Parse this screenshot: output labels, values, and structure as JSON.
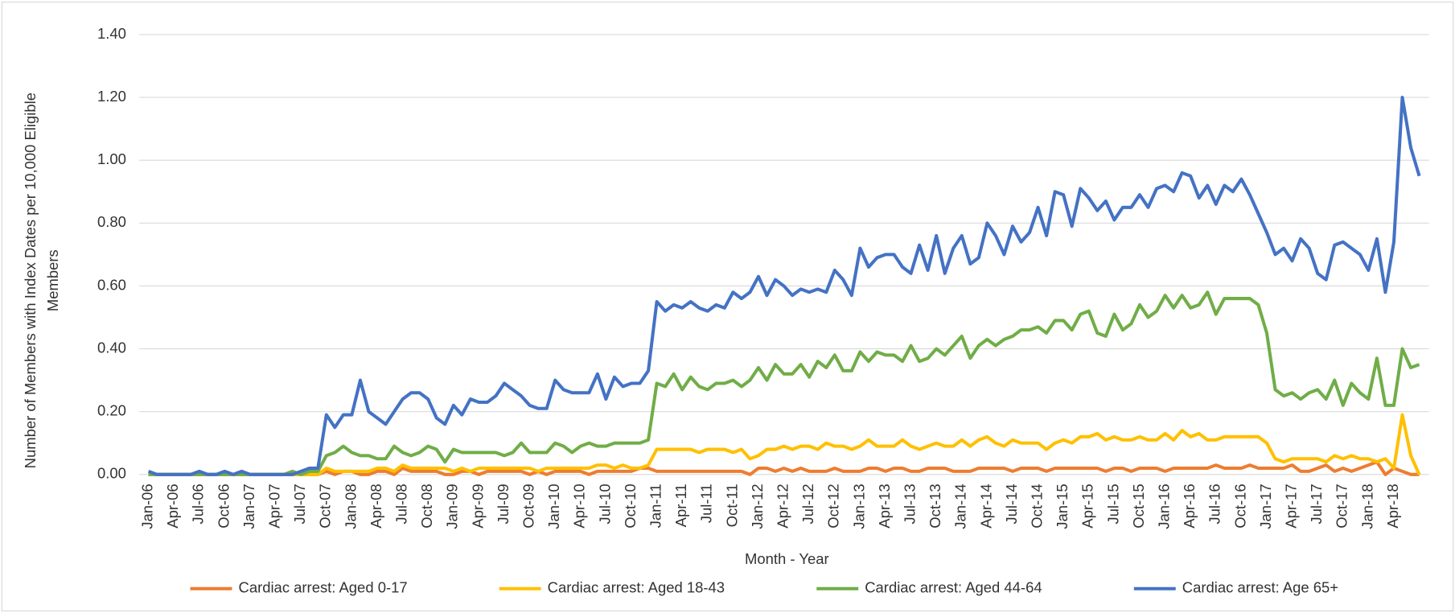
{
  "chart_data": {
    "type": "line",
    "x_label": "Month - Year",
    "y_label_lines": [
      "Number of Members with Index Dates per 10,000 Eligible",
      "Members"
    ],
    "categories": [
      "Jan-06",
      null,
      null,
      "Apr-06",
      null,
      null,
      "Jul-06",
      null,
      null,
      "Oct-06",
      null,
      null,
      "Jan-07",
      null,
      null,
      "Apr-07",
      null,
      null,
      "Jul-07",
      null,
      null,
      "Oct-07",
      null,
      null,
      "Jan-08",
      null,
      null,
      "Apr-08",
      null,
      null,
      "Jul-08",
      null,
      null,
      "Oct-08",
      null,
      null,
      "Jan-09",
      null,
      null,
      "Apr-09",
      null,
      null,
      "Jul-09",
      null,
      null,
      "Oct-09",
      null,
      null,
      "Jan-10",
      null,
      null,
      "Apr-10",
      null,
      null,
      "Jul-10",
      null,
      null,
      "Oct-10",
      null,
      null,
      "Jan-11",
      null,
      null,
      "Apr-11",
      null,
      null,
      "Jul-11",
      null,
      null,
      "Oct-11",
      null,
      null,
      "Jan-12",
      null,
      null,
      "Apr-12",
      null,
      null,
      "Jul-12",
      null,
      null,
      "Oct-12",
      null,
      null,
      "Jan-13",
      null,
      null,
      "Apr-13",
      null,
      null,
      "Jul-13",
      null,
      null,
      "Oct-13",
      null,
      null,
      "Jan-14",
      null,
      null,
      "Apr-14",
      null,
      null,
      "Jul-14",
      null,
      null,
      "Oct-14",
      null,
      null,
      "Jan-15",
      null,
      null,
      "Apr-15",
      null,
      null,
      "Jul-15",
      null,
      null,
      "Oct-15",
      null,
      null,
      "Jan-16",
      null,
      null,
      "Apr-16",
      null,
      null,
      "Jul-16",
      null,
      null,
      "Oct-16",
      null,
      null,
      "Jan-17",
      null,
      null,
      "Apr-17",
      null,
      null,
      "Jul-17",
      null,
      null,
      "Oct-17",
      null,
      null,
      "Jan-18",
      null,
      null,
      "Apr-18",
      null,
      null,
      null
    ],
    "series": [
      {
        "name": "Cardiac arrest: Aged 0-17",
        "color": "#ED7D31",
        "values": [
          0,
          0,
          0,
          0,
          0,
          0,
          0,
          0,
          0,
          0,
          0,
          0,
          0,
          0,
          0,
          0,
          0,
          0,
          0,
          0,
          0,
          0.01,
          0,
          0.01,
          0.01,
          0,
          0,
          0.01,
          0.01,
          0,
          0.02,
          0.01,
          0.01,
          0.01,
          0.01,
          0,
          0,
          0.01,
          0.01,
          0,
          0.01,
          0.01,
          0.01,
          0.01,
          0.01,
          0,
          0.01,
          0,
          0.01,
          0.01,
          0.01,
          0.01,
          0,
          0.01,
          0.01,
          0.01,
          0.01,
          0.01,
          0.02,
          0.02,
          0.01,
          0.01,
          0.01,
          0.01,
          0.01,
          0.01,
          0.01,
          0.01,
          0.01,
          0.01,
          0.01,
          0,
          0.02,
          0.02,
          0.01,
          0.02,
          0.01,
          0.02,
          0.01,
          0.01,
          0.01,
          0.02,
          0.01,
          0.01,
          0.01,
          0.02,
          0.02,
          0.01,
          0.02,
          0.02,
          0.01,
          0.01,
          0.02,
          0.02,
          0.02,
          0.01,
          0.01,
          0.01,
          0.02,
          0.02,
          0.02,
          0.02,
          0.01,
          0.02,
          0.02,
          0.02,
          0.01,
          0.02,
          0.02,
          0.02,
          0.02,
          0.02,
          0.02,
          0.01,
          0.02,
          0.02,
          0.01,
          0.02,
          0.02,
          0.02,
          0.01,
          0.02,
          0.02,
          0.02,
          0.02,
          0.02,
          0.03,
          0.02,
          0.02,
          0.02,
          0.03,
          0.02,
          0.02,
          0.02,
          0.02,
          0.03,
          0.01,
          0.01,
          0.02,
          0.03,
          0.01,
          0.02,
          0.01,
          0.02,
          0.03,
          0.04,
          0,
          0.02,
          0.01,
          0,
          0
        ]
      },
      {
        "name": "Cardiac arrest: Aged 18-43",
        "color": "#FFC000",
        "values": [
          0,
          0,
          0,
          0,
          0,
          0,
          0,
          0,
          0,
          0,
          0,
          0,
          0,
          0,
          0,
          0,
          0,
          0,
          0,
          0,
          0,
          0.02,
          0.01,
          0.01,
          0.01,
          0.01,
          0.01,
          0.02,
          0.02,
          0.01,
          0.03,
          0.02,
          0.02,
          0.02,
          0.02,
          0.02,
          0.01,
          0.02,
          0.01,
          0.02,
          0.02,
          0.02,
          0.02,
          0.02,
          0.02,
          0.02,
          0.01,
          0.02,
          0.02,
          0.02,
          0.02,
          0.02,
          0.02,
          0.03,
          0.03,
          0.02,
          0.03,
          0.02,
          0.02,
          0.03,
          0.08,
          0.08,
          0.08,
          0.08,
          0.08,
          0.07,
          0.08,
          0.08,
          0.08,
          0.07,
          0.08,
          0.05,
          0.06,
          0.08,
          0.08,
          0.09,
          0.08,
          0.09,
          0.09,
          0.08,
          0.1,
          0.09,
          0.09,
          0.08,
          0.09,
          0.11,
          0.09,
          0.09,
          0.09,
          0.11,
          0.09,
          0.08,
          0.09,
          0.1,
          0.09,
          0.09,
          0.11,
          0.09,
          0.11,
          0.12,
          0.1,
          0.09,
          0.11,
          0.1,
          0.1,
          0.1,
          0.08,
          0.1,
          0.11,
          0.1,
          0.12,
          0.12,
          0.13,
          0.11,
          0.12,
          0.11,
          0.11,
          0.12,
          0.11,
          0.11,
          0.13,
          0.11,
          0.14,
          0.12,
          0.13,
          0.11,
          0.11,
          0.12,
          0.12,
          0.12,
          0.12,
          0.12,
          0.1,
          0.05,
          0.04,
          0.05,
          0.05,
          0.05,
          0.05,
          0.04,
          0.06,
          0.05,
          0.06,
          0.05,
          0.05,
          0.04,
          0.05,
          0.02,
          0.19,
          0.06,
          0
        ]
      },
      {
        "name": "Cardiac arrest: Aged 44-64",
        "color": "#70AD47",
        "values": [
          0,
          0,
          0,
          0,
          0,
          0,
          0,
          0,
          0,
          0,
          0,
          0,
          0,
          0,
          0,
          0,
          0,
          0.01,
          0,
          0.01,
          0.01,
          0.06,
          0.07,
          0.09,
          0.07,
          0.06,
          0.06,
          0.05,
          0.05,
          0.09,
          0.07,
          0.06,
          0.07,
          0.09,
          0.08,
          0.04,
          0.08,
          0.07,
          0.07,
          0.07,
          0.07,
          0.07,
          0.06,
          0.07,
          0.1,
          0.07,
          0.07,
          0.07,
          0.1,
          0.09,
          0.07,
          0.09,
          0.1,
          0.09,
          0.09,
          0.1,
          0.1,
          0.1,
          0.1,
          0.11,
          0.29,
          0.28,
          0.32,
          0.27,
          0.31,
          0.28,
          0.27,
          0.29,
          0.29,
          0.3,
          0.28,
          0.3,
          0.34,
          0.3,
          0.35,
          0.32,
          0.32,
          0.35,
          0.31,
          0.36,
          0.34,
          0.38,
          0.33,
          0.33,
          0.39,
          0.36,
          0.39,
          0.38,
          0.38,
          0.36,
          0.41,
          0.36,
          0.37,
          0.4,
          0.38,
          0.41,
          0.44,
          0.37,
          0.41,
          0.43,
          0.41,
          0.43,
          0.44,
          0.46,
          0.46,
          0.47,
          0.45,
          0.49,
          0.49,
          0.46,
          0.51,
          0.52,
          0.45,
          0.44,
          0.51,
          0.46,
          0.48,
          0.54,
          0.5,
          0.52,
          0.57,
          0.53,
          0.57,
          0.53,
          0.54,
          0.58,
          0.51,
          0.56,
          0.56,
          0.56,
          0.56,
          0.54,
          0.45,
          0.27,
          0.25,
          0.26,
          0.24,
          0.26,
          0.27,
          0.24,
          0.3,
          0.22,
          0.29,
          0.26,
          0.24,
          0.37,
          0.22,
          0.22,
          0.4,
          0.34,
          0.35
        ]
      },
      {
        "name": "Cardiac arrest: Age 65+",
        "color": "#4472C4",
        "values": [
          0.01,
          0,
          0,
          0,
          0,
          0,
          0.01,
          0,
          0,
          0.01,
          0,
          0.01,
          0,
          0,
          0,
          0,
          0,
          0,
          0.01,
          0.02,
          0.02,
          0.19,
          0.15,
          0.19,
          0.19,
          0.3,
          0.2,
          0.18,
          0.16,
          0.2,
          0.24,
          0.26,
          0.26,
          0.24,
          0.18,
          0.16,
          0.22,
          0.19,
          0.24,
          0.23,
          0.23,
          0.25,
          0.29,
          0.27,
          0.25,
          0.22,
          0.21,
          0.21,
          0.3,
          0.27,
          0.26,
          0.26,
          0.26,
          0.32,
          0.24,
          0.31,
          0.28,
          0.29,
          0.29,
          0.33,
          0.55,
          0.52,
          0.54,
          0.53,
          0.55,
          0.53,
          0.52,
          0.54,
          0.53,
          0.58,
          0.56,
          0.58,
          0.63,
          0.57,
          0.62,
          0.6,
          0.57,
          0.59,
          0.58,
          0.59,
          0.58,
          0.65,
          0.62,
          0.57,
          0.72,
          0.66,
          0.69,
          0.7,
          0.7,
          0.66,
          0.64,
          0.73,
          0.65,
          0.76,
          0.64,
          0.72,
          0.76,
          0.67,
          0.69,
          0.8,
          0.76,
          0.7,
          0.79,
          0.74,
          0.77,
          0.85,
          0.76,
          0.9,
          0.89,
          0.79,
          0.91,
          0.88,
          0.84,
          0.87,
          0.81,
          0.85,
          0.85,
          0.89,
          0.85,
          0.91,
          0.92,
          0.9,
          0.96,
          0.95,
          0.88,
          0.92,
          0.86,
          0.92,
          0.9,
          0.94,
          0.89,
          0.83,
          0.77,
          0.7,
          0.72,
          0.68,
          0.75,
          0.72,
          0.64,
          0.62,
          0.73,
          0.74,
          0.72,
          0.7,
          0.65,
          0.75,
          0.58,
          0.74,
          1.2,
          1.04,
          0.95
        ]
      }
    ],
    "ylim": [
      0,
      1.4
    ],
    "yticks": [
      {
        "value": 0,
        "label": "0.00"
      },
      {
        "value": 0.2,
        "label": "0.20"
      },
      {
        "value": 0.4,
        "label": "0.40"
      },
      {
        "value": 0.6,
        "label": "0.60"
      },
      {
        "value": 0.8,
        "label": "0.80"
      },
      {
        "value": 1,
        "label": "1.00"
      },
      {
        "value": 1.2,
        "label": "1.20"
      },
      {
        "value": 1.4,
        "label": "1.40"
      }
    ],
    "grid": true,
    "legend": "bottom"
  }
}
